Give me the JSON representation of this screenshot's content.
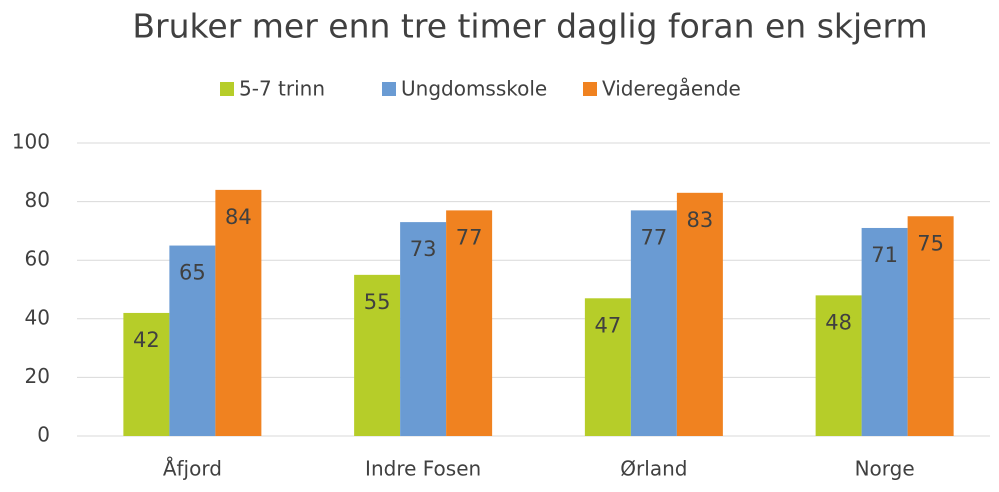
{
  "chart_data": {
    "type": "bar",
    "title": "Bruker mer enn tre timer daglig foran en skjerm",
    "categories": [
      "Åfjord",
      "Indre Fosen",
      "Ørland",
      "Norge"
    ],
    "series": [
      {
        "name": "5-7 trinn",
        "color": "#b6cd29",
        "values": [
          42,
          55,
          47,
          48
        ]
      },
      {
        "name": "Ungdomsskole",
        "color": "#6a9bd3",
        "values": [
          65,
          73,
          77,
          71
        ]
      },
      {
        "name": "Videregående",
        "color": "#f08220",
        "values": [
          84,
          77,
          83,
          75
        ]
      }
    ],
    "ylim": [
      0,
      100
    ],
    "yticks": [
      0,
      20,
      40,
      60,
      80,
      100
    ],
    "grid": true,
    "legend": "top"
  }
}
